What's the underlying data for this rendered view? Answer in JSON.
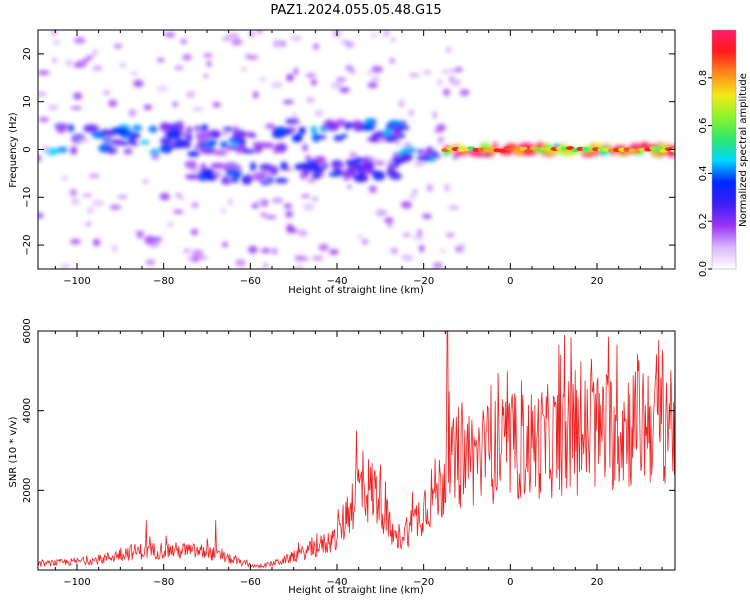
{
  "figure_title": "PAZ1.2024.055.05.48.G15",
  "colors": {
    "snr_line": "#ee2222",
    "colormap": [
      "#ffffff",
      "#d9b8ff",
      "#9a32f5",
      "#3a1ff5",
      "#0026ff",
      "#00d9ff",
      "#2ee86a",
      "#8cf52c",
      "#f2ea1a",
      "#ff8a1a",
      "#ff1a1a",
      "#ff1a6b"
    ]
  },
  "chart_data": [
    {
      "type": "heatmap",
      "title": "",
      "xlabel": "Height of straight line (km)",
      "ylabel": "Frequency (Hz)",
      "xlim": [
        -109,
        38
      ],
      "ylim": [
        -25,
        25
      ],
      "x_ticks": [
        -100,
        -80,
        -60,
        -40,
        -20,
        0,
        20
      ],
      "y_ticks": [
        -20,
        -10,
        0,
        10,
        20
      ],
      "colorbar": {
        "label": "Normalized spectral amplitude",
        "range": [
          0,
          1
        ],
        "ticks": [
          0.0,
          0.2,
          0.4,
          0.6,
          0.8
        ]
      },
      "features": [
        {
          "x_start": -106,
          "x_end": -52,
          "freq_center": 2,
          "freq_spread": 3,
          "amplitude": 0.35
        },
        {
          "x_start": -74,
          "x_end": -52,
          "freq_center": -5,
          "freq_spread": 2,
          "amplitude": 0.3
        },
        {
          "x_start": -51,
          "x_end": -24,
          "freq_center": 4,
          "freq_spread": 2,
          "amplitude": 0.35
        },
        {
          "x_start": -49,
          "x_end": -25,
          "freq_center": -4,
          "freq_spread": 2,
          "amplitude": 0.3
        },
        {
          "x_start": -26,
          "x_end": -17,
          "freq_center": -1,
          "freq_spread": 1,
          "amplitude": 0.35
        },
        {
          "x_start": -15,
          "x_end": 38,
          "freq_center": 0,
          "freq_spread": 0.8,
          "amplitude": 0.95
        }
      ]
    },
    {
      "type": "line",
      "title": "",
      "xlabel": "Height of straight line (km)",
      "ylabel": "SNR (10 * v/v)",
      "xlim": [
        -109,
        38
      ],
      "ylim": [
        0,
        6000
      ],
      "x_ticks": [
        -100,
        -80,
        -60,
        -40,
        -20,
        0,
        20
      ],
      "y_ticks": [
        2000,
        4000,
        6000
      ],
      "envelope": {
        "x": [
          -109,
          -95,
          -88,
          -80,
          -70,
          -62,
          -58,
          -52,
          -45,
          -40,
          -37,
          -35,
          -30,
          -27,
          -25,
          -22,
          -20,
          -18,
          -16,
          -15,
          -14,
          -10,
          -5,
          0,
          5,
          10,
          15,
          20,
          25,
          30,
          35,
          38
        ],
        "y": [
          150,
          250,
          450,
          500,
          450,
          180,
          80,
          250,
          550,
          800,
          1600,
          2100,
          1900,
          700,
          900,
          1200,
          1600,
          1900,
          2100,
          2400,
          2600,
          2800,
          2950,
          3050,
          3150,
          3250,
          3350,
          3450,
          3550,
          3700,
          3900,
          3800
        ]
      },
      "spikes": [
        {
          "x": -84,
          "y": 1250
        },
        {
          "x": -68,
          "y": 1250
        },
        {
          "x": -35.5,
          "y": 3500
        },
        {
          "x": -14.5,
          "y": 6000
        },
        {
          "x": 20,
          "y": 4700
        },
        {
          "x": 36,
          "y": 4700
        }
      ]
    }
  ]
}
